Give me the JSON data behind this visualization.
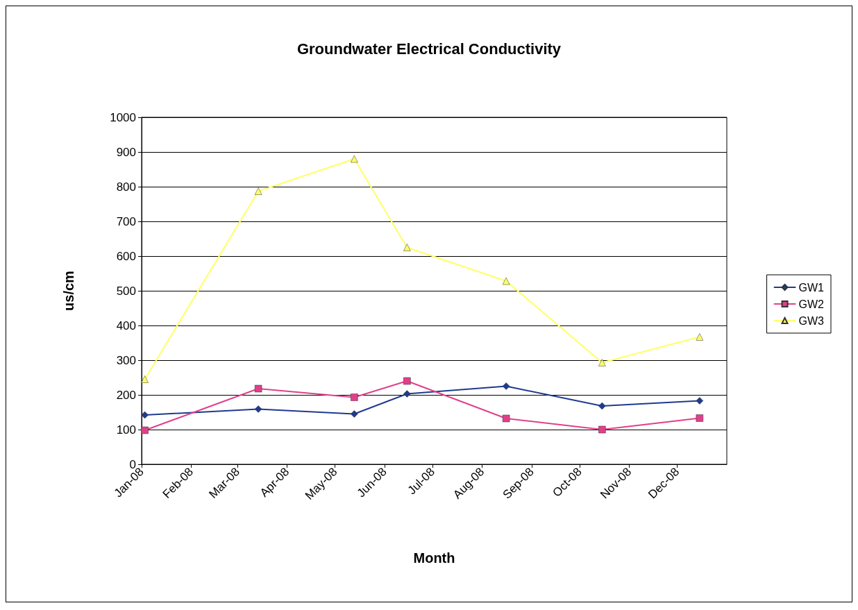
{
  "chart_data": {
    "type": "line",
    "title": "Groundwater Electrical Conductivity",
    "xlabel": "Month",
    "ylabel": "us/cm",
    "x": [
      "2008-01-03",
      "2008-03-14",
      "2008-05-13",
      "2008-06-15",
      "2008-08-16",
      "2008-10-15",
      "2008-12-15"
    ],
    "series": [
      {
        "name": "GW1",
        "color": "#1f3a8f",
        "marker": "diamond",
        "values": [
          142,
          159,
          145,
          203,
          225,
          168,
          183
        ]
      },
      {
        "name": "GW2",
        "color": "#e0408a",
        "marker": "square",
        "values": [
          98,
          218,
          193,
          240,
          132,
          100,
          133
        ]
      },
      {
        "name": "GW3",
        "color": "#ffff66",
        "marker": "triangle",
        "values": [
          245,
          787,
          880,
          625,
          528,
          293,
          367
        ]
      }
    ],
    "xlim": [
      "2008-01-01",
      "2009-01-01"
    ],
    "xticks": [
      {
        "value": "2008-01-01",
        "label": "Jan-08"
      },
      {
        "value": "2008-02-01",
        "label": "Feb-08"
      },
      {
        "value": "2008-03-01",
        "label": "Mar-08"
      },
      {
        "value": "2008-04-01",
        "label": "Apr-08"
      },
      {
        "value": "2008-05-01",
        "label": "May-08"
      },
      {
        "value": "2008-06-01",
        "label": "Jun-08"
      },
      {
        "value": "2008-07-01",
        "label": "Jul-08"
      },
      {
        "value": "2008-08-01",
        "label": "Aug-08"
      },
      {
        "value": "2008-09-01",
        "label": "Sep-08"
      },
      {
        "value": "2008-10-01",
        "label": "Oct-08"
      },
      {
        "value": "2008-11-01",
        "label": "Nov-08"
      },
      {
        "value": "2008-12-01",
        "label": "Dec-08"
      }
    ],
    "ylim": [
      0,
      1000
    ],
    "yticks": [
      0,
      100,
      200,
      300,
      400,
      500,
      600,
      700,
      800,
      900,
      1000
    ],
    "grid": "y",
    "legend": "right",
    "line_style": "solid"
  }
}
